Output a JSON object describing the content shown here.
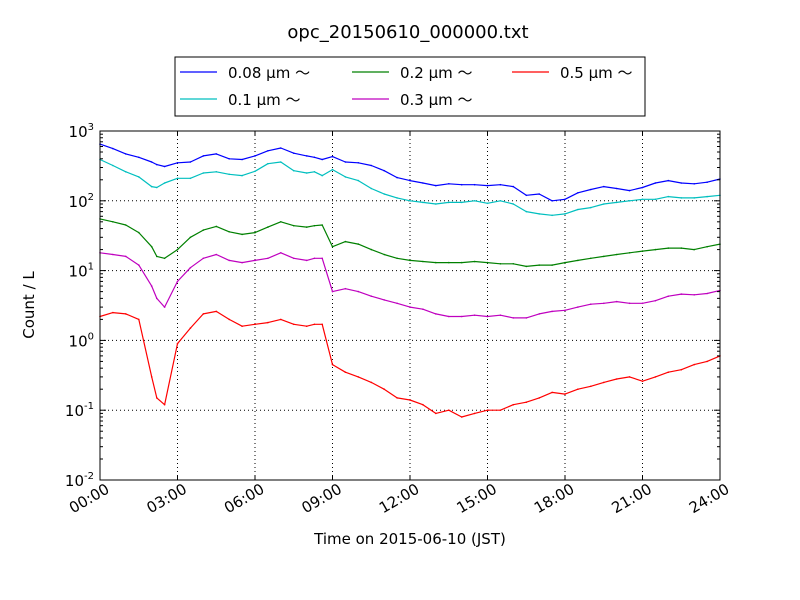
{
  "chart_data": {
    "type": "line",
    "title": "opc_20150610_000000.txt",
    "xlabel": "Time on 2015-06-10 (JST)",
    "ylabel": "Count / L",
    "yscale": "log",
    "ylim": [
      0.01,
      1000
    ],
    "xlim": [
      "00:00",
      "24:00"
    ],
    "grid": true,
    "legend_position": "top",
    "x_ticks": [
      "00:00",
      "03:00",
      "06:00",
      "09:00",
      "12:00",
      "15:00",
      "18:00",
      "21:00",
      "24:00"
    ],
    "y_ticks": [
      {
        "value": 0.01,
        "base": "10",
        "exp": "-2"
      },
      {
        "value": 0.1,
        "base": "10",
        "exp": "-1"
      },
      {
        "value": 1,
        "base": "10",
        "exp": "0"
      },
      {
        "value": 10,
        "base": "10",
        "exp": "1"
      },
      {
        "value": 100,
        "base": "10",
        "exp": "2"
      },
      {
        "value": 1000,
        "base": "10",
        "exp": "3"
      }
    ],
    "x_hours": [
      0,
      0.5,
      1,
      1.5,
      2,
      2.2,
      2.5,
      3,
      3.5,
      4,
      4.5,
      5,
      5.5,
      6,
      6.5,
      7,
      7.5,
      8,
      8.3,
      8.6,
      9,
      9.5,
      10,
      10.5,
      11,
      11.5,
      12,
      12.5,
      13,
      13.5,
      14,
      14.5,
      15,
      15.5,
      16,
      16.5,
      17,
      17.5,
      18,
      18.5,
      19,
      19.5,
      20,
      20.5,
      21,
      21.5,
      22,
      22.5,
      23,
      23.5,
      24
    ],
    "series": [
      {
        "name": "0.08 μm ～",
        "color": "#0000ff",
        "values": [
          650,
          560,
          470,
          420,
          360,
          330,
          310,
          350,
          360,
          440,
          470,
          400,
          390,
          440,
          520,
          570,
          480,
          440,
          420,
          390,
          430,
          360,
          350,
          320,
          270,
          215,
          195,
          180,
          165,
          175,
          170,
          170,
          165,
          170,
          160,
          120,
          125,
          100,
          105,
          130,
          145,
          160,
          150,
          140,
          155,
          180,
          195,
          180,
          175,
          185,
          205
        ]
      },
      {
        "name": "0.1 μm ～",
        "color": "#00bfbf",
        "values": [
          390,
          320,
          260,
          220,
          160,
          155,
          180,
          210,
          210,
          250,
          260,
          240,
          230,
          265,
          340,
          360,
          270,
          250,
          260,
          230,
          280,
          220,
          195,
          150,
          125,
          110,
          100,
          95,
          90,
          95,
          95,
          100,
          92,
          100,
          90,
          70,
          65,
          62,
          65,
          75,
          80,
          90,
          95,
          100,
          105,
          105,
          115,
          110,
          110,
          115,
          120
        ]
      },
      {
        "name": "0.2 μm ～",
        "color": "#008000",
        "values": [
          55,
          50,
          45,
          35,
          22,
          16,
          15,
          20,
          30,
          38,
          43,
          36,
          33,
          35,
          42,
          50,
          44,
          42,
          44,
          45,
          22,
          26,
          24,
          20,
          17,
          15,
          14,
          13.5,
          13,
          13,
          13,
          13.5,
          13,
          12.5,
          12.5,
          11.5,
          12,
          12,
          13,
          14,
          15,
          16,
          17,
          18,
          19,
          20,
          21,
          21,
          20,
          22,
          24
        ]
      },
      {
        "name": "0.3 μm ～",
        "color": "#bf00bf",
        "values": [
          18,
          17,
          16,
          12,
          6,
          4,
          3,
          7,
          11,
          15,
          17,
          14,
          13,
          14,
          15,
          18,
          15,
          14,
          15,
          15,
          5,
          5.5,
          5,
          4.3,
          3.8,
          3.4,
          3,
          2.8,
          2.4,
          2.2,
          2.2,
          2.3,
          2.2,
          2.3,
          2.1,
          2.1,
          2.4,
          2.6,
          2.7,
          3,
          3.3,
          3.4,
          3.6,
          3.4,
          3.4,
          3.7,
          4.3,
          4.6,
          4.5,
          4.7,
          5.2
        ]
      },
      {
        "name": "0.5 μm ～",
        "color": "#ff0000",
        "values": [
          2.2,
          2.5,
          2.4,
          2.0,
          0.3,
          0.15,
          0.12,
          0.9,
          1.5,
          2.4,
          2.6,
          2.0,
          1.6,
          1.7,
          1.8,
          2.0,
          1.7,
          1.6,
          1.7,
          1.7,
          0.45,
          0.35,
          0.3,
          0.25,
          0.2,
          0.15,
          0.14,
          0.12,
          0.09,
          0.1,
          0.08,
          0.09,
          0.1,
          0.1,
          0.12,
          0.13,
          0.15,
          0.18,
          0.17,
          0.2,
          0.22,
          0.25,
          0.28,
          0.3,
          0.26,
          0.3,
          0.35,
          0.38,
          0.45,
          0.5,
          0.6
        ]
      }
    ]
  }
}
